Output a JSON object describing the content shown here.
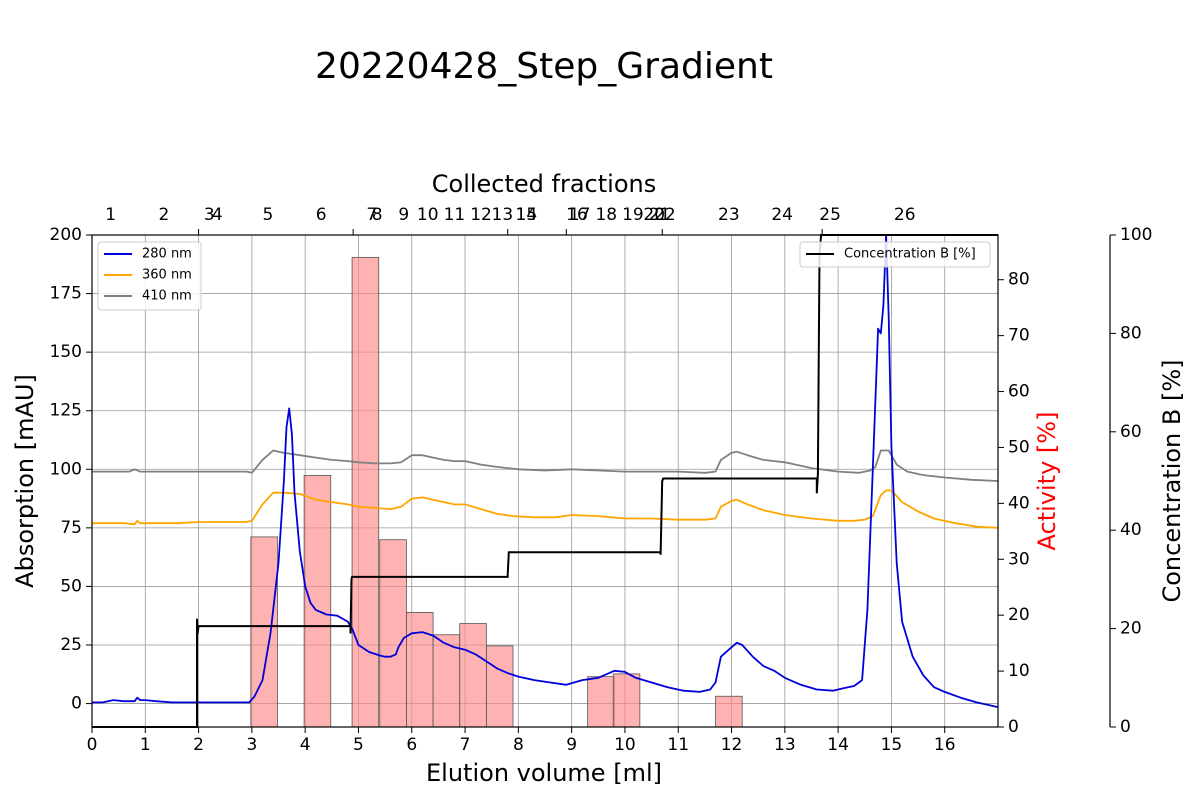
{
  "chart_data": {
    "type": "line",
    "title": "20220428_Step_Gradient",
    "xlabel": "Elution volume [ml]",
    "ylabel": "Absorption [mAU]",
    "ylabel_right": "Activity [%]",
    "ylabel_far_right": "Concentration B [%]",
    "top_axis_label": "Collected fractions",
    "xlim": [
      0,
      17
    ],
    "ylim": [
      -10,
      200
    ],
    "ylim_activity": [
      0,
      88
    ],
    "ylim_concentration": [
      0,
      100
    ],
    "x_ticks": [
      0,
      1,
      2,
      3,
      4,
      5,
      6,
      7,
      8,
      9,
      10,
      11,
      12,
      13,
      14,
      15,
      16
    ],
    "y_ticks": [
      0,
      25,
      50,
      75,
      100,
      125,
      150,
      175,
      200
    ],
    "activity_ticks": [
      0,
      10,
      20,
      30,
      40,
      50,
      60,
      70,
      80
    ],
    "concentration_ticks": [
      0,
      20,
      40,
      60,
      80,
      100
    ],
    "grid": true,
    "legend_left": {
      "placement": "top-left",
      "entries": [
        "280 nm",
        "360 nm",
        "410 nm"
      ]
    },
    "legend_right": {
      "placement": "top-right",
      "entries": [
        "Concentration B [%]"
      ]
    },
    "colors": {
      "280 nm": "#0000dd",
      "360 nm": "#ffa500",
      "410 nm": "#808080",
      "concentration": "#000000",
      "activity": "#ff8888",
      "activity_label": "#ff0000"
    },
    "fractions": {
      "labels": [
        "1",
        "2",
        "3",
        "4",
        "5",
        "6",
        "7",
        "8",
        "9",
        "10",
        "11",
        "12",
        "13",
        "14",
        "15",
        "16",
        "17",
        "18",
        "19",
        "20",
        "21",
        "22",
        "23",
        "24",
        "25",
        "26"
      ],
      "centers": [
        0.35,
        1.35,
        2.2,
        2.35,
        3.3,
        4.3,
        5.25,
        5.35,
        5.85,
        6.3,
        6.8,
        7.3,
        7.7,
        8.15,
        8.15,
        9.1,
        9.15,
        9.65,
        10.15,
        10.55,
        10.65,
        10.75,
        11.95,
        12.95,
        13.85,
        15.25
      ],
      "boundaries": [
        2.0,
        4.9,
        7.8,
        8.9,
        10.7,
        13.7
      ]
    },
    "activity": {
      "x_start": [
        2.98,
        3.98,
        4.88,
        5.4,
        5.9,
        6.4,
        6.9,
        7.4,
        9.3,
        9.78,
        11.7
      ],
      "x_end": [
        3.48,
        4.48,
        5.38,
        5.9,
        6.4,
        6.9,
        7.4,
        7.9,
        9.8,
        10.28,
        12.2
      ],
      "values": [
        34,
        45,
        84,
        33.5,
        20.5,
        16.5,
        18.5,
        14.5,
        9,
        9.5,
        5.5
      ]
    },
    "concentration_b": {
      "x": [
        0,
        1.97,
        1.97,
        1.98,
        2.0,
        2.0,
        4.85,
        4.85,
        4.87,
        4.88,
        4.88,
        7.8,
        7.8,
        7.82,
        7.83,
        7.83,
        10.67,
        10.67,
        10.7,
        10.72,
        10.72,
        13.6,
        13.6,
        13.62,
        13.65,
        13.68,
        13.7,
        17
      ],
      "values": [
        0,
        0,
        22,
        19,
        20.5,
        20.5,
        20.5,
        19,
        30,
        30.5,
        30.5,
        30.5,
        31,
        35.5,
        35.5,
        35.5,
        35.5,
        35,
        50,
        50.5,
        50.5,
        50.5,
        47.5,
        51.5,
        96,
        100,
        100,
        100
      ]
    },
    "series": [
      {
        "name": "280 nm",
        "x": [
          0,
          0.2,
          0.4,
          0.6,
          0.8,
          0.85,
          0.9,
          1.0,
          1.2,
          1.5,
          1.8,
          2.0,
          2.3,
          2.6,
          2.95,
          3.05,
          3.2,
          3.35,
          3.5,
          3.6,
          3.65,
          3.7,
          3.75,
          3.8,
          3.9,
          4.0,
          4.1,
          4.2,
          4.4,
          4.6,
          4.8,
          4.88,
          5.0,
          5.2,
          5.4,
          5.5,
          5.6,
          5.7,
          5.75,
          5.85,
          6.0,
          6.2,
          6.4,
          6.6,
          6.8,
          7.0,
          7.2,
          7.4,
          7.6,
          7.8,
          8.0,
          8.3,
          8.6,
          8.9,
          9.2,
          9.5,
          9.8,
          10.0,
          10.2,
          10.5,
          10.8,
          11.1,
          11.4,
          11.6,
          11.7,
          11.8,
          12.0,
          12.1,
          12.2,
          12.4,
          12.6,
          12.8,
          13.0,
          13.3,
          13.6,
          13.9,
          14.1,
          14.3,
          14.45,
          14.55,
          14.65,
          14.75,
          14.8,
          14.85,
          14.9,
          14.95,
          15.0,
          15.1,
          15.2,
          15.4,
          15.6,
          15.8,
          16.0,
          16.3,
          16.6,
          17.0
        ],
        "values": [
          0.5,
          0.5,
          1.5,
          1,
          1,
          2.5,
          1.5,
          1.5,
          1,
          0.5,
          0.5,
          0.5,
          0.5,
          0.5,
          0.5,
          3,
          10,
          30,
          60,
          95,
          118,
          126,
          115,
          90,
          65,
          50,
          43,
          40,
          38,
          37.5,
          35,
          32,
          25,
          22,
          20.5,
          20,
          20,
          21,
          24,
          28,
          30,
          30.5,
          29,
          26,
          24,
          23,
          21,
          18,
          15,
          13,
          11.5,
          10,
          9,
          8,
          10,
          11,
          14,
          13.5,
          11,
          9,
          7,
          5.5,
          5,
          6,
          9,
          20,
          24,
          26,
          25,
          20,
          16,
          14,
          11,
          8,
          6,
          5.5,
          6.5,
          7.5,
          10,
          40,
          100,
          160,
          158,
          170,
          200,
          165,
          110,
          60,
          35,
          20,
          12,
          7,
          5,
          2.5,
          0.5,
          -1.5
        ]
      },
      {
        "name": "360 nm",
        "x": [
          0,
          0.3,
          0.6,
          0.8,
          0.85,
          0.9,
          1.2,
          1.6,
          2.0,
          2.5,
          2.9,
          3.0,
          3.2,
          3.4,
          3.6,
          3.9,
          4.2,
          4.5,
          4.8,
          5.0,
          5.3,
          5.6,
          5.8,
          6.0,
          6.2,
          6.4,
          6.6,
          6.8,
          7.0,
          7.3,
          7.6,
          7.9,
          8.3,
          8.7,
          9.0,
          9.5,
          10.0,
          10.5,
          11.0,
          11.5,
          11.7,
          11.8,
          12.0,
          12.1,
          12.3,
          12.6,
          13.0,
          13.5,
          14.0,
          14.3,
          14.5,
          14.65,
          14.8,
          14.9,
          15.0,
          15.2,
          15.5,
          15.8,
          16.2,
          16.6,
          17.0
        ],
        "values": [
          77,
          77,
          77,
          76.5,
          78,
          77,
          77,
          77,
          77.5,
          77.5,
          77.5,
          78,
          85,
          90,
          90,
          89.5,
          87,
          86,
          85,
          84,
          83.5,
          83,
          84,
          87.5,
          88,
          87,
          86,
          85,
          85,
          83,
          81,
          80,
          79.5,
          79.5,
          80.5,
          80,
          79,
          79,
          78.5,
          78.5,
          79,
          84,
          86.5,
          87,
          85,
          82.5,
          80.5,
          79,
          78,
          78,
          78.5,
          80,
          89,
          91,
          91,
          86,
          82,
          79,
          77,
          75.5,
          75
        ]
      },
      {
        "name": "410 nm",
        "x": [
          0,
          0.4,
          0.7,
          0.8,
          0.9,
          1.2,
          1.6,
          2.0,
          2.5,
          2.9,
          3.0,
          3.2,
          3.4,
          3.6,
          3.9,
          4.2,
          4.5,
          4.8,
          5.0,
          5.3,
          5.6,
          5.8,
          6.0,
          6.2,
          6.4,
          6.6,
          6.8,
          7.0,
          7.3,
          7.6,
          8.0,
          8.5,
          9.0,
          9.5,
          10.0,
          10.5,
          11.0,
          11.5,
          11.7,
          11.8,
          12.0,
          12.1,
          12.3,
          12.6,
          13.0,
          13.5,
          14.0,
          14.4,
          14.6,
          14.7,
          14.8,
          14.95,
          15.1,
          15.3,
          15.6,
          16.0,
          16.5,
          17.0
        ],
        "values": [
          99,
          99,
          99,
          100,
          99,
          99,
          99,
          99,
          99,
          99,
          98.5,
          104,
          108,
          107,
          106,
          105,
          104,
          103.5,
          103,
          102.5,
          102.5,
          103,
          106,
          106,
          105,
          104,
          103.5,
          103.5,
          102,
          101,
          100,
          99.5,
          100,
          99.5,
          99,
          99,
          99,
          98.5,
          99,
          104,
          107,
          107.5,
          106,
          104,
          103,
          100.5,
          99,
          98.5,
          99.5,
          101,
          108,
          108,
          102,
          99,
          97.5,
          96.5,
          95.5,
          95
        ]
      }
    ]
  }
}
